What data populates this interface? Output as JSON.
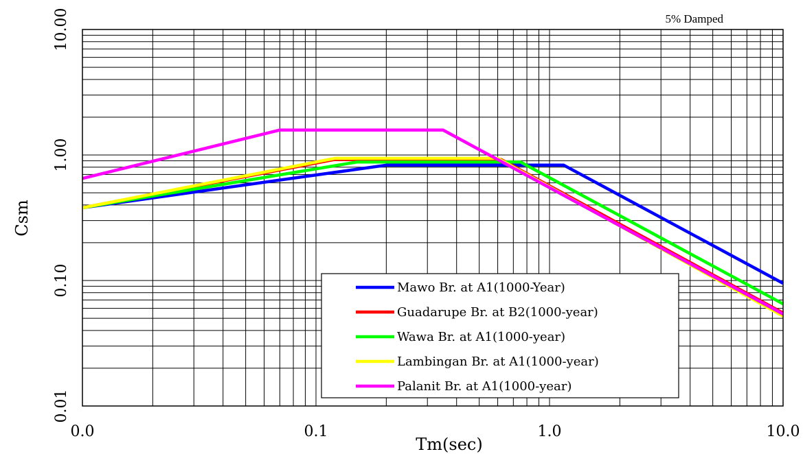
{
  "chart_data": {
    "type": "line",
    "x_scale": "log",
    "y_scale": "log",
    "xlim": [
      0.01,
      10
    ],
    "ylim": [
      0.01,
      10
    ],
    "xlabel": "Tm(sec)",
    "ylabel": "Csm",
    "x_tick_labels": [
      "0.0",
      "0.1",
      "1.0",
      "10.0"
    ],
    "x_tick_values": [
      0.01,
      0.1,
      1,
      10
    ],
    "y_tick_labels": [
      "0.01",
      "0.10",
      "1.00",
      "10.00"
    ],
    "y_tick_values": [
      0.01,
      0.1,
      1,
      10
    ],
    "annotation": "5% Damped",
    "legend_position": "bottom-right",
    "grid": true,
    "series": [
      {
        "name": "Mawo Br. at A1(1000-Year)",
        "color": "#0000ff",
        "x": [
          0.01,
          0.2,
          1.15,
          10
        ],
        "y": [
          0.38,
          0.83,
          0.83,
          0.095
        ]
      },
      {
        "name": "Guadarupe Br. at B2(1000-year)",
        "color": "#ff0000",
        "x": [
          0.01,
          0.12,
          0.62,
          10
        ],
        "y": [
          0.38,
          0.92,
          0.92,
          0.055
        ]
      },
      {
        "name": "Wawa Br. at A1(1000-year)",
        "color": "#00ff00",
        "x": [
          0.01,
          0.15,
          0.75,
          10
        ],
        "y": [
          0.38,
          0.88,
          0.88,
          0.065
        ]
      },
      {
        "name": "Lambingan Br. at A1(1000-year)",
        "color": "#ffff00",
        "x": [
          0.01,
          0.12,
          0.6,
          10
        ],
        "y": [
          0.38,
          0.94,
          0.94,
          0.052
        ]
      },
      {
        "name": "Palanit Br. at A1(1000-year)",
        "color": "#ff00ff",
        "x": [
          0.01,
          0.07,
          0.35,
          10
        ],
        "y": [
          0.65,
          1.58,
          1.58,
          0.054
        ]
      }
    ]
  }
}
